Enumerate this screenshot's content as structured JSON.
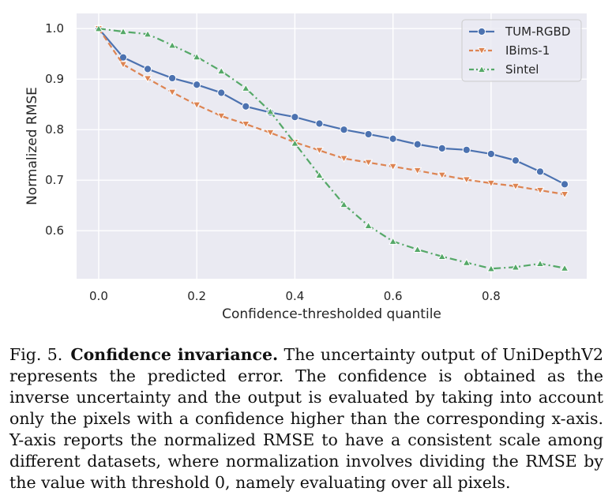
{
  "chart_data": {
    "type": "line",
    "title": "",
    "xlabel": "Confidence-thresholded quantile",
    "ylabel": "Normalized RMSE",
    "xlim": [
      -0.045,
      0.995
    ],
    "ylim": [
      0.505,
      1.03
    ],
    "xticks": [
      0.0,
      0.2,
      0.4,
      0.6,
      0.8
    ],
    "xtick_labels": [
      "0.0",
      "0.2",
      "0.4",
      "0.6",
      "0.8"
    ],
    "yticks": [
      0.6,
      0.7,
      0.8,
      0.9,
      1.0
    ],
    "ytick_labels": [
      "0.6",
      "0.7",
      "0.8",
      "0.9",
      "1.0"
    ],
    "grid": true,
    "legend_position": "top-right",
    "x": [
      0.0,
      0.05,
      0.1,
      0.15,
      0.2,
      0.25,
      0.3,
      0.35,
      0.4,
      0.45,
      0.5,
      0.55,
      0.6,
      0.65,
      0.7,
      0.75,
      0.8,
      0.85,
      0.9,
      0.95
    ],
    "series": [
      {
        "name": "TUM-RGBD",
        "color": "#4c72b0",
        "marker": "circle",
        "linestyle": "solid",
        "values": [
          1.0,
          0.943,
          0.92,
          0.902,
          0.889,
          0.873,
          0.846,
          0.834,
          0.825,
          0.812,
          0.8,
          0.791,
          0.782,
          0.771,
          0.763,
          0.76,
          0.752,
          0.739,
          0.717,
          0.692
        ]
      },
      {
        "name": "IBims-1",
        "color": "#dd8452",
        "marker": "triangle-down",
        "linestyle": "dashed",
        "values": [
          1.0,
          0.929,
          0.901,
          0.874,
          0.849,
          0.827,
          0.811,
          0.794,
          0.775,
          0.759,
          0.743,
          0.735,
          0.727,
          0.719,
          0.71,
          0.701,
          0.694,
          0.688,
          0.68,
          0.672
        ]
      },
      {
        "name": "Sintel",
        "color": "#55a868",
        "marker": "triangle-up",
        "linestyle": "dashdot",
        "values": [
          1.0,
          0.994,
          0.989,
          0.967,
          0.944,
          0.916,
          0.882,
          0.836,
          0.773,
          0.71,
          0.652,
          0.61,
          0.579,
          0.563,
          0.549,
          0.537,
          0.525,
          0.528,
          0.535,
          0.526
        ]
      }
    ]
  },
  "caption": {
    "label": "Fig. 5.",
    "title": "Confidence invariance.",
    "body": " The uncertainty output of UniDepthV2 represents the predicted error. The confidence is obtained as the inverse uncertainty and the output is evaluated by taking into account only the pixels with a confidence higher than the corresponding x-axis. Y-axis reports the normalized RMSE to have a consistent scale among different datasets, where normalization involves dividing the RMSE by the value with threshold 0, namely evaluating over all pixels."
  }
}
